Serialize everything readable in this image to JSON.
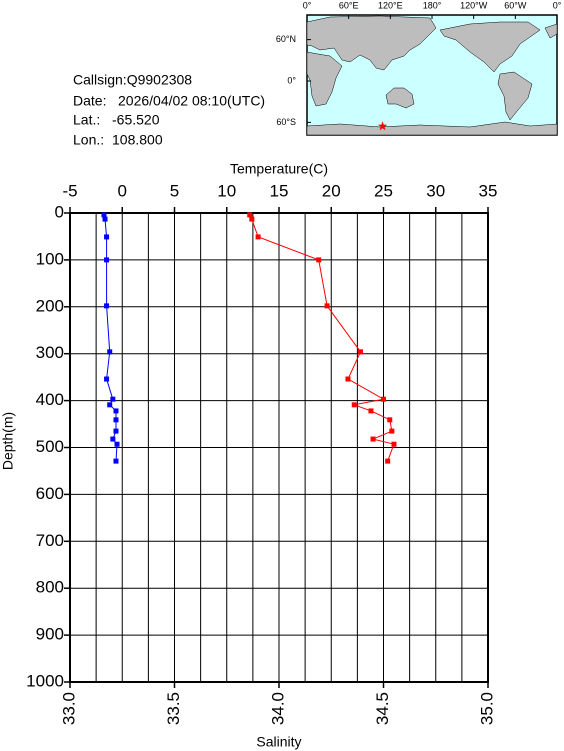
{
  "info": {
    "callsign": "Callsign:Q9902308",
    "date_label": "Date:",
    "date": "2026/04/02 08:10(UTC)",
    "lat_label": "Lat.:",
    "lat": {
      "value": -65.52,
      "label": "-65.520"
    },
    "lon_label": "Lon.:",
    "lon": {
      "value": 108.8,
      "label": "108.800"
    }
  },
  "map": {
    "lon_ticks": [
      {
        "value": 0,
        "label": "0°"
      },
      {
        "value": 60,
        "label": "60°E"
      },
      {
        "value": 120,
        "label": "120°E"
      },
      {
        "value": 180,
        "label": "180°"
      },
      {
        "value": 240,
        "label": "120°W"
      },
      {
        "value": 300,
        "label": "60°W"
      },
      {
        "value": 360,
        "label": "0°"
      }
    ],
    "lat_ticks": [
      {
        "value": 60,
        "label": "60°N"
      },
      {
        "value": 0,
        "label": "0°"
      },
      {
        "value": -60,
        "label": "60°S"
      }
    ]
  },
  "chart_data": {
    "type": "profile",
    "x_title": "Temperature(C)",
    "x2_title": "Salinity",
    "y_title": "Depth(m)",
    "xlim": [
      -5,
      35
    ],
    "xticks": [
      -5,
      0,
      5,
      10,
      15,
      20,
      25,
      30,
      35
    ],
    "xgrid": [
      -5,
      -2.5,
      0,
      2.5,
      5,
      7.5,
      10,
      12.5,
      15,
      17.5,
      20,
      22.5,
      25,
      27.5,
      30,
      32.5,
      35
    ],
    "x2lim": [
      33.0,
      35.0
    ],
    "x2ticks": [
      {
        "value": 33,
        "label": "33.0"
      },
      33.5,
      {
        "value": 34,
        "label": "34.0"
      },
      34.5,
      {
        "value": 35,
        "label": "35.0"
      }
    ],
    "ylim": [
      0,
      1000
    ],
    "yticks": [
      0,
      100,
      200,
      300,
      400,
      500,
      600,
      700,
      800,
      900,
      1000
    ],
    "grid": true,
    "depth": [
      4,
      13,
      51,
      100,
      198,
      296,
      354,
      397,
      409,
      422,
      441,
      465,
      482,
      493,
      529
    ],
    "series": [
      {
        "name": "Temperature",
        "color": "#0000ff",
        "axis": "x",
        "values": [
          -1.75,
          -1.65,
          -1.5,
          -1.5,
          -1.5,
          -1.2,
          -1.5,
          -0.9,
          -1.2,
          -0.6,
          -0.6,
          -0.6,
          -0.9,
          -0.5,
          -0.6
        ]
      },
      {
        "name": "Salinity",
        "color": "#ff0000",
        "axis": "x2",
        "values": [
          33.86,
          33.87,
          33.9,
          34.19,
          34.23,
          34.39,
          34.33,
          34.5,
          34.36,
          34.44,
          34.53,
          34.54,
          34.45,
          34.55,
          34.52
        ]
      }
    ]
  }
}
